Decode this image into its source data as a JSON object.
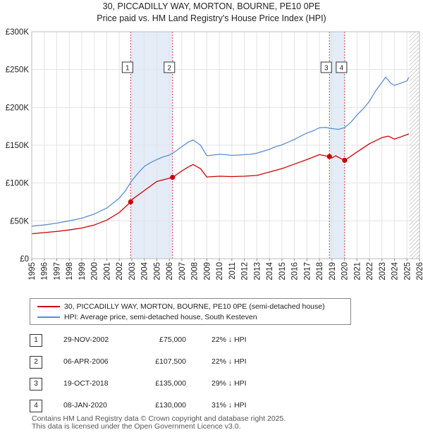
{
  "title_line1": "30, PICCADILLY WAY, MORTON, BOURNE, PE10 0PE",
  "title_line2": "Price paid vs. HM Land Registry's House Price Index (HPI)",
  "chart_data": {
    "type": "line",
    "title": "30, PICCADILLY WAY, MORTON, BOURNE, PE10 0PE — Price paid vs. HM Land Registry's House Price Index (HPI)",
    "xlim": [
      1995,
      2026
    ],
    "ylim": [
      0,
      300000
    ],
    "xticks": [
      "1995",
      "1996",
      "1997",
      "1998",
      "1999",
      "2000",
      "2001",
      "2002",
      "2003",
      "2004",
      "2005",
      "2006",
      "2007",
      "2008",
      "2009",
      "2010",
      "2011",
      "2012",
      "2013",
      "2014",
      "2015",
      "2016",
      "2017",
      "2018",
      "2019",
      "2020",
      "2021",
      "2022",
      "2023",
      "2024",
      "2025",
      "2026"
    ],
    "yticks": [
      {
        "value": 0,
        "label": "£0"
      },
      {
        "value": 50000,
        "label": "£50K"
      },
      {
        "value": 100000,
        "label": "£100K"
      },
      {
        "value": 150000,
        "label": "£150K"
      },
      {
        "value": 200000,
        "label": "£200K"
      },
      {
        "value": 250000,
        "label": "£250K"
      },
      {
        "value": 300000,
        "label": "£300K"
      }
    ],
    "grid": true,
    "colors": {
      "property": "#cc0000",
      "hpi": "#5b8fd0",
      "shade": "#e4ecf8",
      "hatch": "#b8b8b8",
      "marker": "#cc0000"
    },
    "shaded_periods": [
      [
        2002.91,
        2006.26
      ],
      [
        2018.8,
        2020.02
      ]
    ],
    "hatched_from": 2025.2,
    "series": [
      {
        "name": "HPI: Average price, semi-detached house, South Kesteven",
        "x": [
          1995,
          1996,
          1997,
          1998,
          1999,
          2000,
          2001,
          2002,
          2002.5,
          2003,
          2003.5,
          2004,
          2004.5,
          2005,
          2005.5,
          2006,
          2006.5,
          2007,
          2007.5,
          2007.9,
          2008.5,
          2009,
          2009.5,
          2010,
          2010.5,
          2011,
          2011.5,
          2012,
          2012.5,
          2013,
          2013.5,
          2014,
          2014.5,
          2015,
          2015.5,
          2016,
          2016.5,
          2017,
          2017.5,
          2018,
          2018.5,
          2019,
          2019.5,
          2020,
          2020.5,
          2021,
          2021.5,
          2022,
          2022.5,
          2023,
          2023.3,
          2023.7,
          2024,
          2024.5,
          2025,
          2025.15
        ],
        "values": [
          43000,
          44500,
          47000,
          50000,
          53500,
          59000,
          67000,
          80000,
          90000,
          103000,
          113000,
          122000,
          127000,
          131000,
          134500,
          137000,
          142000,
          148000,
          154000,
          157000,
          150000,
          136000,
          137000,
          138000,
          137500,
          136500,
          137000,
          137500,
          138000,
          139500,
          142000,
          144500,
          148000,
          150500,
          154000,
          157500,
          162000,
          166000,
          169000,
          173000,
          173500,
          172000,
          171000,
          173000,
          180000,
          190000,
          198000,
          208000,
          222000,
          233000,
          240000,
          232000,
          229000,
          232000,
          235000,
          240000
        ]
      },
      {
        "name": "30, PICCADILLY WAY, MORTON, BOURNE, PE10 0PE (semi-detached house)",
        "x": [
          1995,
          1996,
          1997,
          1998,
          1999,
          2000,
          2001,
          2002,
          2002.91,
          2003,
          2004,
          2005,
          2006.26,
          2007,
          2007.5,
          2007.9,
          2008.5,
          2009,
          2010,
          2011,
          2012,
          2013,
          2014,
          2015,
          2016,
          2017,
          2018,
          2018.8,
          2019,
          2019.3,
          2019.7,
          2020.02,
          2021,
          2022,
          2023,
          2023.5,
          2024,
          2024.5,
          2025,
          2025.15
        ],
        "values": [
          33000,
          34500,
          36000,
          38000,
          40500,
          44500,
          51000,
          61000,
          75000,
          78000,
          90000,
          102000,
          107500,
          116000,
          121000,
          124500,
          119000,
          108000,
          109000,
          108500,
          109000,
          110000,
          114500,
          119000,
          125000,
          131000,
          137500,
          135000,
          133000,
          136000,
          132500,
          130000,
          141000,
          152000,
          160000,
          162000,
          158000,
          161000,
          164000,
          165000
        ]
      }
    ],
    "sales": [
      {
        "id": "1",
        "date": "29-NOV-2002",
        "year": 2002.91,
        "price": 75000
      },
      {
        "id": "2",
        "date": "06-APR-2006",
        "year": 2006.26,
        "price": 107500
      },
      {
        "id": "3",
        "date": "19-OCT-2018",
        "year": 2018.8,
        "price": 135000
      },
      {
        "id": "4",
        "date": "08-JAN-2020",
        "year": 2020.02,
        "price": 130000
      }
    ]
  },
  "legend": {
    "property_label": "30, PICCADILLY WAY, MORTON, BOURNE, PE10 0PE (semi-detached house)",
    "hpi_label": "HPI: Average price, semi-detached house, South Kesteven"
  },
  "sales_table": [
    {
      "num": "1",
      "date": "29-NOV-2002",
      "price": "£75,000",
      "hpi": "22% ↓ HPI"
    },
    {
      "num": "2",
      "date": "06-APR-2006",
      "price": "£107,500",
      "hpi": "22% ↓ HPI"
    },
    {
      "num": "3",
      "date": "19-OCT-2018",
      "price": "£135,000",
      "hpi": "29% ↓ HPI"
    },
    {
      "num": "4",
      "date": "08-JAN-2020",
      "price": "£130,000",
      "hpi": "31% ↓ HPI"
    }
  ],
  "footer_line1": "Contains HM Land Registry data © Crown copyright and database right 2025.",
  "footer_line2": "This data is licensed under the Open Government Licence v3.0."
}
